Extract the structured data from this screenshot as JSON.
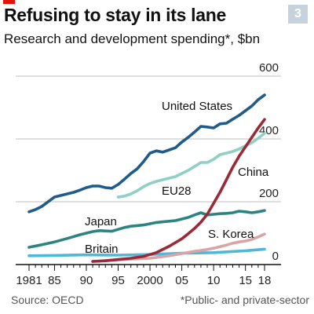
{
  "header": {
    "title": "Refusing to stay in its lane",
    "subtitle": "Research and development spending*, $bn",
    "badge": "3"
  },
  "footer": {
    "source": "Source: OECD",
    "note": "*Public- and private-sector"
  },
  "colors": {
    "accent": "#e3120b",
    "United States": "#1f5c8b",
    "EU28": "#8ed0c4",
    "Japan": "#2c8480",
    "Britain": "#4fb8d6",
    "China": "#9b2a36",
    "S. Korea": "#d9a4a8",
    "grid": "#bfbfbf"
  },
  "chart_data": {
    "type": "line",
    "title": "Refusing to stay in its lane",
    "subtitle": "Research and development spending*, $bn",
    "xlim": [
      1981,
      2018
    ],
    "ylim": [
      0,
      600
    ],
    "x_tick_labels": [
      "1981",
      "85",
      "90",
      "95",
      "2000",
      "05",
      "10",
      "15",
      "18"
    ],
    "x_tick_values": [
      1981,
      1985,
      1990,
      1995,
      2000,
      2005,
      2010,
      2015,
      2018
    ],
    "y_tick_labels": [
      "0",
      "200",
      "400",
      "600"
    ],
    "y_tick_values": [
      0,
      200,
      400,
      600
    ],
    "grid": "horizontal",
    "series": [
      {
        "name": "United States",
        "x": [
          1981,
          1982,
          1983,
          1984,
          1985,
          1986,
          1987,
          1988,
          1989,
          1990,
          1991,
          1992,
          1993,
          1994,
          1995,
          1996,
          1997,
          1998,
          1999,
          2000,
          2001,
          2002,
          2003,
          2004,
          2005,
          2006,
          2007,
          2008,
          2009,
          2010,
          2011,
          2012,
          2013,
          2014,
          2015,
          2016,
          2017,
          2018
        ],
        "values": [
          168,
          175,
          185,
          200,
          215,
          220,
          225,
          230,
          237,
          245,
          250,
          250,
          245,
          243,
          255,
          272,
          290,
          305,
          328,
          355,
          362,
          358,
          365,
          372,
          390,
          405,
          422,
          440,
          438,
          435,
          448,
          450,
          463,
          475,
          490,
          505,
          525,
          540
        ]
      },
      {
        "name": "EU28",
        "x": [
          1995,
          1996,
          1997,
          1998,
          1999,
          2000,
          2001,
          2002,
          2003,
          2004,
          2005,
          2006,
          2007,
          2008,
          2009,
          2010,
          2011,
          2012,
          2013,
          2014,
          2015,
          2016,
          2017,
          2018
        ],
        "values": [
          215,
          218,
          225,
          235,
          248,
          258,
          265,
          270,
          275,
          280,
          290,
          300,
          312,
          325,
          325,
          335,
          350,
          355,
          360,
          368,
          378,
          388,
          402,
          418
        ]
      },
      {
        "name": "Japan",
        "x": [
          1981,
          1983,
          1985,
          1987,
          1989,
          1991,
          1992,
          1993,
          1994,
          1995,
          1996,
          1997,
          1998,
          1999,
          2000,
          2001,
          2002,
          2003,
          2004,
          2005,
          2006,
          2007,
          2008,
          2009,
          2010,
          2011,
          2012,
          2013,
          2014,
          2015,
          2016,
          2017,
          2018
        ],
        "values": [
          55,
          63,
          72,
          83,
          95,
          105,
          108,
          107,
          106,
          112,
          118,
          122,
          124,
          126,
          130,
          134,
          136,
          138,
          140,
          145,
          150,
          158,
          165,
          158,
          160,
          162,
          163,
          165,
          170,
          168,
          165,
          168,
          172
        ]
      },
      {
        "name": "Britain",
        "x": [
          1981,
          1985,
          1990,
          1995,
          2000,
          2005,
          2010,
          2015,
          2018
        ],
        "values": [
          28,
          29,
          31,
          30,
          32,
          36,
          38,
          44,
          49
        ]
      },
      {
        "name": "China",
        "x": [
          1991,
          1993,
          1995,
          1997,
          1999,
          2000,
          2001,
          2002,
          2003,
          2004,
          2005,
          2006,
          2007,
          2008,
          2009,
          2010,
          2011,
          2012,
          2013,
          2014,
          2015,
          2016,
          2017,
          2018
        ],
        "values": [
          10,
          12,
          16,
          20,
          26,
          32,
          38,
          48,
          58,
          70,
          82,
          98,
          115,
          135,
          160,
          195,
          230,
          270,
          310,
          345,
          375,
          405,
          435,
          462
        ]
      },
      {
        "name": "S. Korea",
        "x": [
          1991,
          1995,
          2000,
          2003,
          2005,
          2007,
          2009,
          2010,
          2011,
          2012,
          2013,
          2014,
          2015,
          2016,
          2017,
          2018
        ],
        "values": [
          10,
          15,
          20,
          28,
          35,
          42,
          48,
          52,
          57,
          62,
          68,
          72,
          75,
          80,
          88,
          97
        ]
      }
    ]
  }
}
